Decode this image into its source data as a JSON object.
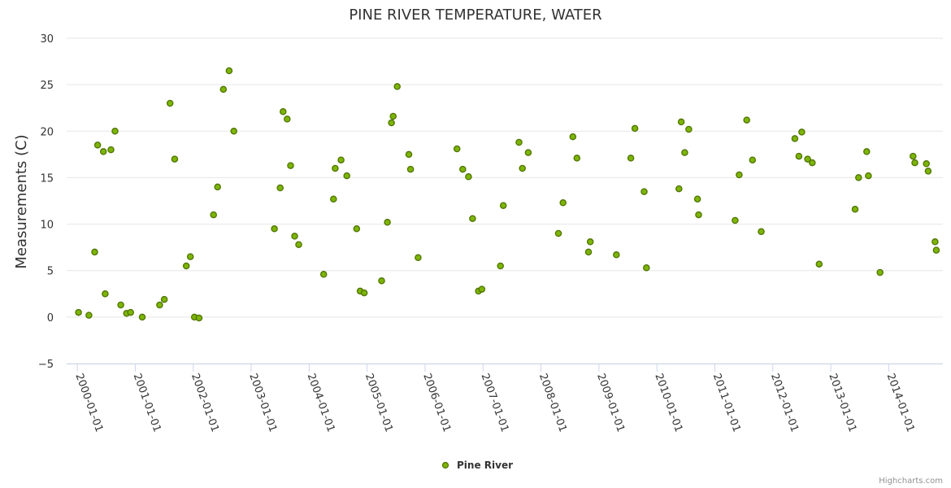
{
  "chart_data": {
    "type": "scatter",
    "title": "PINE RIVER TEMPERATURE, WATER",
    "ylabel": "Measurements (C)",
    "xlabel": "",
    "ylim": [
      -5,
      30
    ],
    "yticks": [
      -5,
      0,
      5,
      10,
      15,
      20,
      25,
      30
    ],
    "xlim": [
      1999.9,
      2014.85
    ],
    "xtick_labels": [
      "2000-01-01",
      "2001-01-01",
      "2002-01-01",
      "2003-01-01",
      "2004-01-01",
      "2005-01-01",
      "2006-01-01",
      "2007-01-01",
      "2008-01-01",
      "2009-01-01",
      "2010-01-01",
      "2011-01-01",
      "2012-01-01",
      "2013-01-01",
      "2014-01-01"
    ],
    "grid": true,
    "legend_position": "bottom-center",
    "credit": "Highcharts.com",
    "series": [
      {
        "name": "Pine River",
        "color": "#7cb506",
        "border_color": "#4f7300",
        "x": [
          2000.02,
          2000.2,
          2000.3,
          2000.35,
          2000.45,
          2000.48,
          2000.58,
          2000.65,
          2000.75,
          2000.85,
          2000.92,
          2001.12,
          2001.42,
          2001.5,
          2001.6,
          2001.68,
          2001.88,
          2001.95,
          2002.02,
          2002.1,
          2002.35,
          2002.42,
          2002.52,
          2002.62,
          2002.7,
          2003.4,
          2003.5,
          2003.55,
          2003.62,
          2003.68,
          2003.75,
          2003.82,
          2004.25,
          2004.42,
          2004.45,
          2004.55,
          2004.65,
          2004.82,
          2004.88,
          2004.95,
          2005.25,
          2005.35,
          2005.42,
          2005.45,
          2005.52,
          2005.72,
          2005.75,
          2005.88,
          2006.55,
          2006.65,
          2006.75,
          2006.82,
          2006.92,
          2006.98,
          2007.3,
          2007.35,
          2007.62,
          2007.68,
          2007.78,
          2008.3,
          2008.38,
          2008.55,
          2008.62,
          2008.82,
          2008.85,
          2009.3,
          2009.55,
          2009.62,
          2009.78,
          2009.82,
          2010.38,
          2010.42,
          2010.48,
          2010.55,
          2010.7,
          2010.72,
          2011.35,
          2011.42,
          2011.55,
          2011.65,
          2011.8,
          2012.38,
          2012.45,
          2012.5,
          2012.6,
          2012.68,
          2012.8,
          2013.42,
          2013.48,
          2013.62,
          2013.65,
          2013.85,
          2014.42,
          2014.45,
          2014.65,
          2014.68,
          2014.8,
          2014.82
        ],
        "y": [
          0.5,
          0.2,
          7.0,
          18.5,
          17.8,
          2.5,
          18.0,
          20.0,
          1.3,
          0.4,
          0.5,
          0.0,
          1.3,
          1.9,
          23.0,
          17.0,
          5.5,
          6.5,
          0.0,
          -0.1,
          11.0,
          14.0,
          24.5,
          26.5,
          20.0,
          9.5,
          13.9,
          22.1,
          21.3,
          16.3,
          8.7,
          7.8,
          4.6,
          12.7,
          16.0,
          16.9,
          15.2,
          9.5,
          2.8,
          2.6,
          3.9,
          10.2,
          20.9,
          21.6,
          24.8,
          17.5,
          15.9,
          6.4,
          18.1,
          15.9,
          15.1,
          10.6,
          2.8,
          3.0,
          5.5,
          12.0,
          18.8,
          16.0,
          17.7,
          9.0,
          12.3,
          19.4,
          17.1,
          7.0,
          8.1,
          6.7,
          17.1,
          20.3,
          13.5,
          5.3,
          13.8,
          21.0,
          17.7,
          20.2,
          12.7,
          11.0,
          10.4,
          15.3,
          21.2,
          16.9,
          9.2,
          19.2,
          17.3,
          19.9,
          17.0,
          16.6,
          5.7,
          11.6,
          15.0,
          17.8,
          15.2,
          4.8,
          17.3,
          16.6,
          16.5,
          15.7,
          8.1,
          7.2
        ]
      }
    ]
  }
}
